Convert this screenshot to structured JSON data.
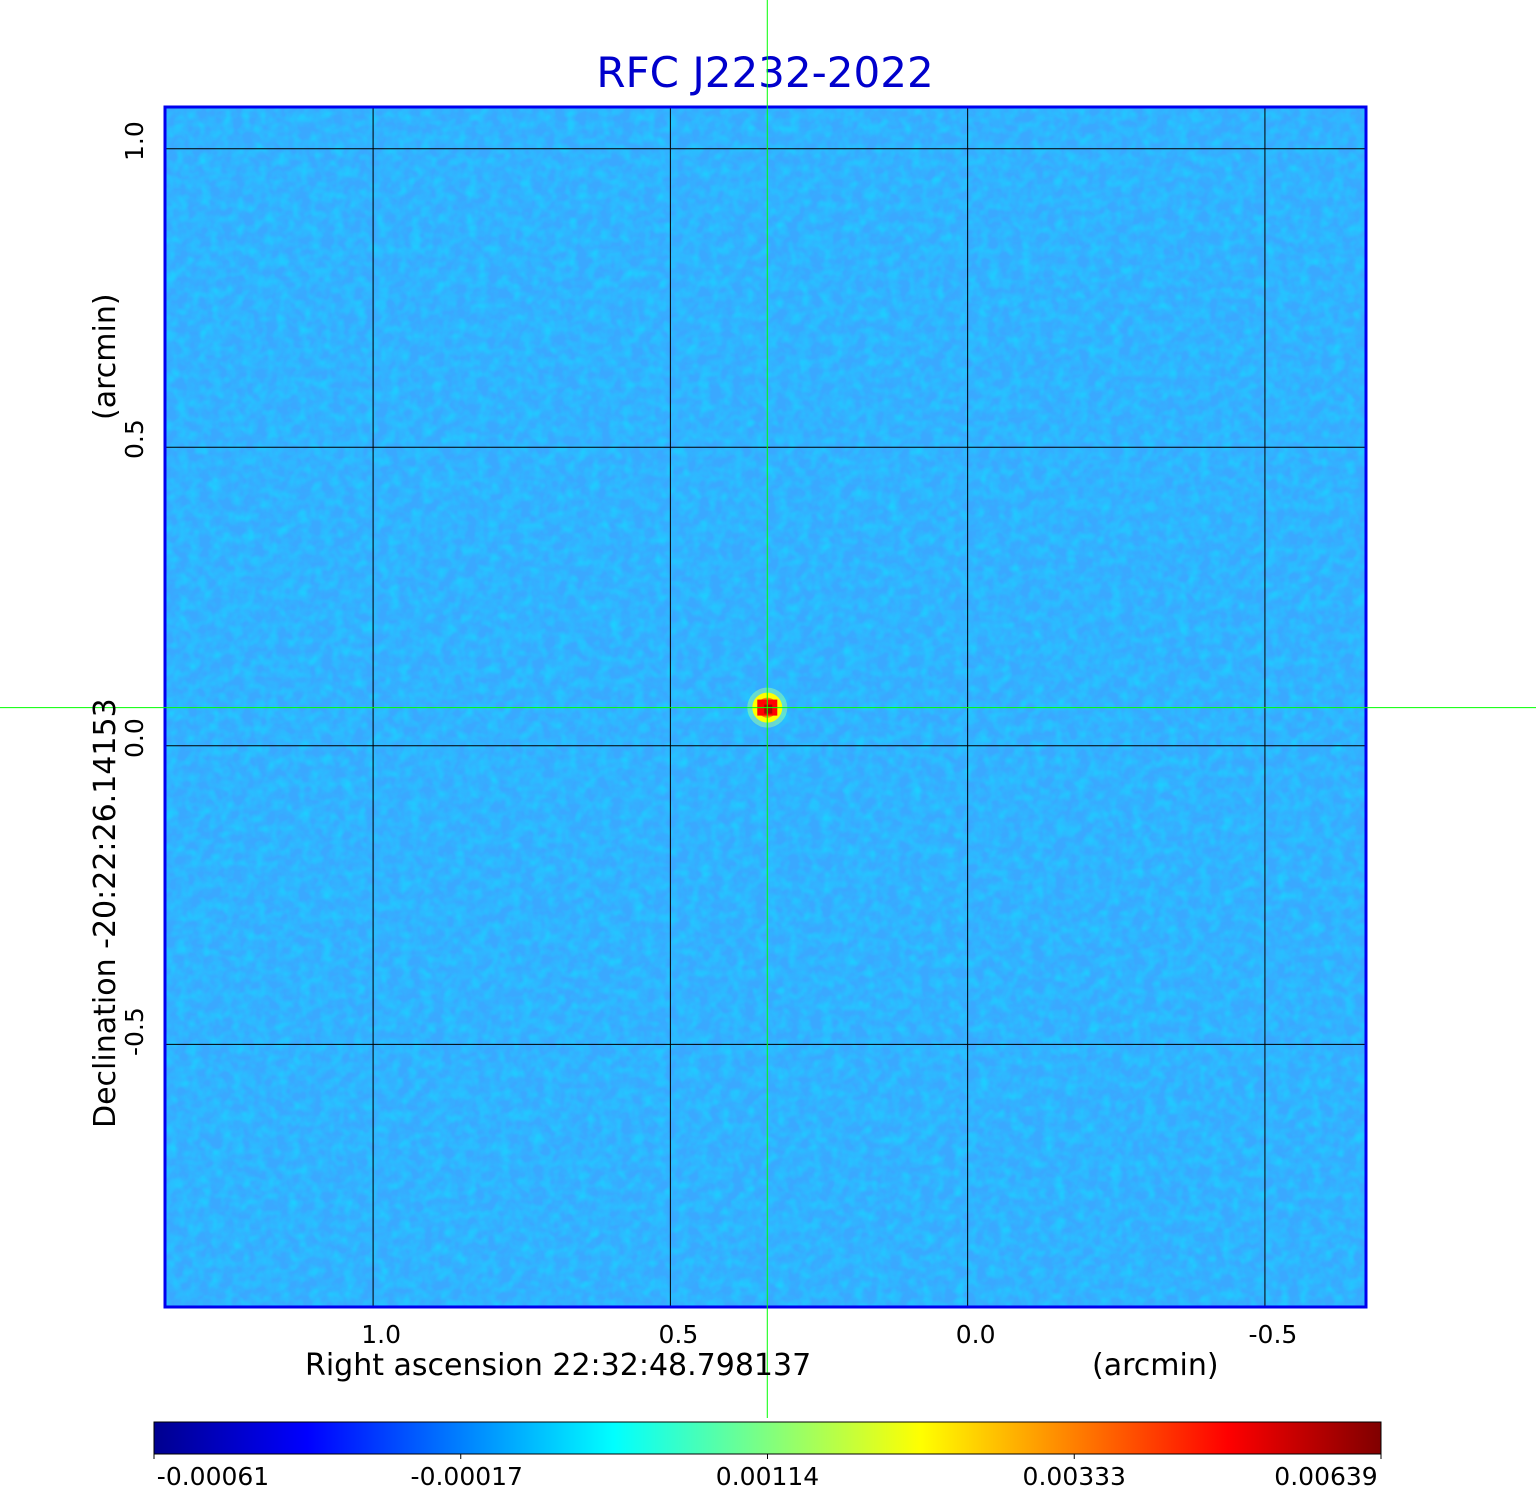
{
  "chart_data": {
    "type": "heatmap",
    "title": "RFC J2232-2022",
    "xlabel": "Right ascension  22:32:48.798137",
    "xunit": "(arcmin)",
    "ylabel": "Declination  -20:22:26.14153",
    "yunit": "(arcmin)",
    "xlim": [
      1.35,
      -0.67
    ],
    "ylim": [
      -0.94,
      1.07
    ],
    "x_ticks": [
      "1.0",
      "0.5",
      "0.0",
      "-0.5"
    ],
    "x_tick_values": [
      1.0,
      0.5,
      0.0,
      -0.5
    ],
    "y_ticks": [
      "1.0",
      "0.5",
      "0.0",
      "-0.5"
    ],
    "y_tick_values": [
      1.0,
      0.5,
      0.0,
      -0.5
    ],
    "grid": true,
    "crosshair": {
      "x": 0.337,
      "y": 0.064,
      "color": "#00ff00"
    },
    "source": {
      "x": 0.337,
      "y": 0.064,
      "peak": 0.00639
    },
    "colorbar": {
      "ticks": [
        "-0.00061",
        "-0.00017",
        "0.00114",
        "0.00333",
        "0.00639"
      ],
      "colormap": "jet",
      "min": -0.00061,
      "max": 0.00639
    },
    "background_color": "#3aa8ff",
    "frame_color": "#0000ee"
  }
}
